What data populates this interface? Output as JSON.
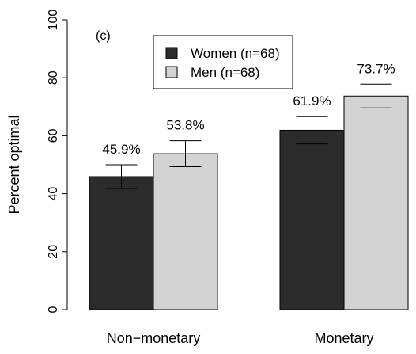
{
  "chart_data": {
    "type": "bar",
    "panel_label": "(c)",
    "ylabel": "Percent optimal",
    "ylim": [
      0,
      100
    ],
    "yticks": [
      0,
      20,
      40,
      60,
      80,
      100
    ],
    "categories": [
      "Non−monetary",
      "Monetary"
    ],
    "series": [
      {
        "name": "Women (n=68)",
        "color": "#2b2b2b",
        "values": [
          45.9,
          61.9
        ],
        "labels": [
          "45.9%",
          "61.9%"
        ],
        "error_low": [
          41.8,
          57.2
        ],
        "error_high": [
          50.0,
          66.6
        ]
      },
      {
        "name": "Men (n=68)",
        "color": "#d3d3d3",
        "values": [
          53.8,
          73.7
        ],
        "labels": [
          "53.8%",
          "73.7%"
        ],
        "error_low": [
          49.3,
          69.6
        ],
        "error_high": [
          58.3,
          77.8
        ]
      }
    ],
    "legend_position": "top-center",
    "grid": false
  }
}
